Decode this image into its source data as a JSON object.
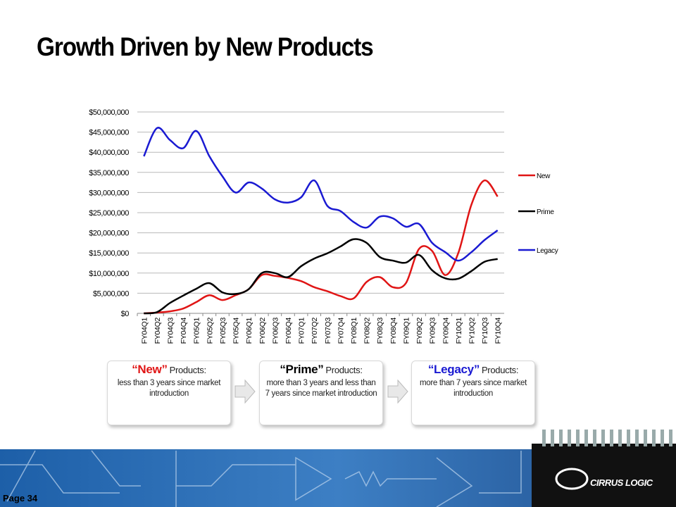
{
  "title": "Growth Driven by New Products",
  "chart_data": {
    "type": "line",
    "categories": [
      "FY04Q1",
      "FY04Q2",
      "FY04Q3",
      "FY04Q4",
      "FY05Q1",
      "FY05Q2",
      "FY05Q3",
      "FY05Q4",
      "FY06Q1",
      "FY06Q2",
      "FY06Q3",
      "FY06Q4",
      "FY07Q1",
      "FY07Q2",
      "FY07Q3",
      "FY07Q4",
      "FY08Q1",
      "FY08Q2",
      "FY08Q3",
      "FY08Q4",
      "FY09Q1",
      "FY09Q2",
      "FY09Q3",
      "FY09Q4",
      "FY10Q1",
      "FY10Q2",
      "FY10Q3",
      "FY10Q4"
    ],
    "series": [
      {
        "name": "New",
        "color": "#e01515",
        "values": [
          0,
          200000,
          500000,
          1200000,
          2800000,
          4500000,
          3300000,
          4500000,
          6000000,
          9500000,
          9300000,
          8800000,
          8000000,
          6500000,
          5500000,
          4300000,
          3700000,
          7800000,
          9000000,
          6500000,
          7500000,
          16000000,
          15500000,
          9500000,
          15000000,
          27000000,
          33000000,
          29000000
        ]
      },
      {
        "name": "Prime",
        "color": "#000000",
        "values": [
          0,
          300000,
          2600000,
          4400000,
          6100000,
          7500000,
          5200000,
          4800000,
          6000000,
          10000000,
          10000000,
          9000000,
          11700000,
          13600000,
          14900000,
          16600000,
          18400000,
          17500000,
          14000000,
          13100000,
          12600000,
          14500000,
          10700000,
          8700000,
          8600000,
          10500000,
          12800000,
          13500000
        ]
      },
      {
        "name": "Legacy",
        "color": "#1a1ad2",
        "values": [
          39000000,
          46000000,
          43000000,
          41000000,
          45300000,
          39000000,
          34000000,
          30000000,
          32500000,
          31000000,
          28300000,
          27500000,
          28800000,
          33000000,
          26700000,
          25400000,
          22700000,
          21300000,
          24000000,
          23600000,
          21500000,
          22200000,
          17500000,
          15200000,
          13100000,
          15200000,
          18200000,
          20600000
        ]
      }
    ],
    "ylim": [
      0,
      50000000
    ],
    "yticks": [
      {
        "value": 0,
        "label": "$0"
      },
      {
        "value": 5000000,
        "label": "$5,000,000"
      },
      {
        "value": 10000000,
        "label": "$10,000,000"
      },
      {
        "value": 15000000,
        "label": "$15,000,000"
      },
      {
        "value": 20000000,
        "label": "$20,000,000"
      },
      {
        "value": 25000000,
        "label": "$25,000,000"
      },
      {
        "value": 30000000,
        "label": "$30,000,000"
      },
      {
        "value": 35000000,
        "label": "$35,000,000"
      },
      {
        "value": 40000000,
        "label": "$40,000,000"
      },
      {
        "value": 45000000,
        "label": "$45,000,000"
      },
      {
        "value": 50000000,
        "label": "$50,000,000"
      }
    ],
    "grid": true,
    "smooth": true,
    "legend": "right"
  },
  "boxes": [
    {
      "name": "“New”",
      "suffix": "Products:",
      "text": "less than 3 years since market introduction"
    },
    {
      "name": "“Prime”",
      "suffix": "Products:",
      "text": "more than 3 years and less than 7 years since market introduction"
    },
    {
      "name": "“Legacy”",
      "suffix": "Products:",
      "text": "more than 7 years since market introduction"
    }
  ],
  "footer": {
    "page": "Page 34",
    "logo": "CIRRUS LOGIC"
  }
}
